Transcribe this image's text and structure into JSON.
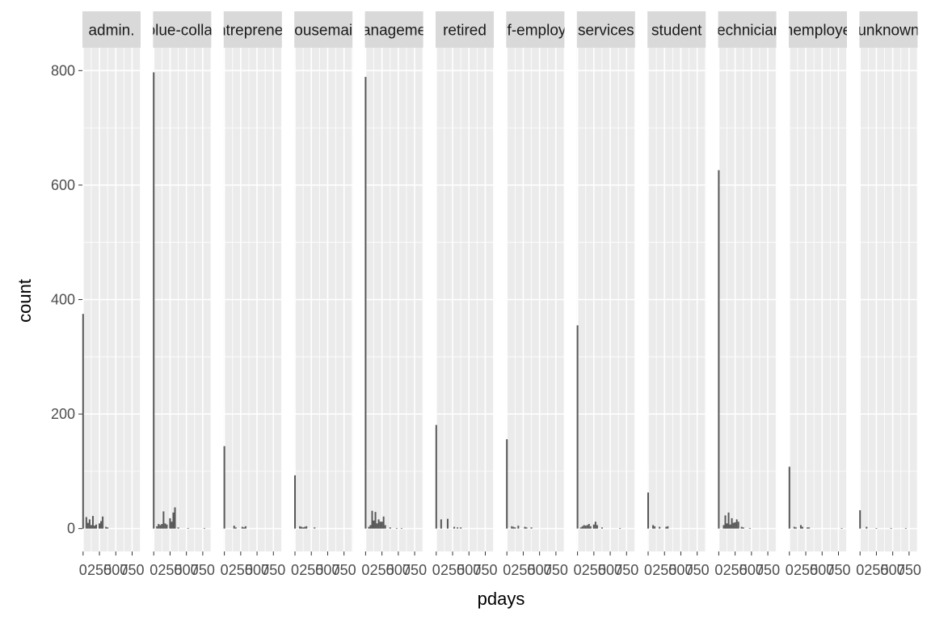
{
  "chart_data": {
    "type": "bar",
    "subtype": "faceted histogram",
    "xlabel": "pdays",
    "ylabel": "count",
    "xlim": [
      -10,
      880
    ],
    "ylim": [
      -40,
      840
    ],
    "x_ticks": [
      0,
      250,
      500,
      750
    ],
    "x_tick_labels": [
      "0",
      "250",
      "500",
      "750"
    ],
    "y_ticks": [
      0,
      200,
      400,
      600,
      800
    ],
    "y_tick_labels": [
      "0",
      "200",
      "400",
      "600",
      "800"
    ],
    "grid": true,
    "legend": "none",
    "bin_width": 25,
    "facets": [
      {
        "label": "admin.",
        "bins": [
          {
            "x": 0,
            "y": 375
          },
          {
            "x": 50,
            "y": 20
          },
          {
            "x": 75,
            "y": 10
          },
          {
            "x": 100,
            "y": 16
          },
          {
            "x": 125,
            "y": 6
          },
          {
            "x": 150,
            "y": 22
          },
          {
            "x": 175,
            "y": 5
          },
          {
            "x": 200,
            "y": 7
          },
          {
            "x": 250,
            "y": 9
          },
          {
            "x": 275,
            "y": 13
          },
          {
            "x": 300,
            "y": 21
          },
          {
            "x": 350,
            "y": 3
          },
          {
            "x": 375,
            "y": 2
          }
        ]
      },
      {
        "label": "blue-collar",
        "bins": [
          {
            "x": 0,
            "y": 797
          },
          {
            "x": 50,
            "y": 4
          },
          {
            "x": 75,
            "y": 8
          },
          {
            "x": 100,
            "y": 6
          },
          {
            "x": 125,
            "y": 8
          },
          {
            "x": 150,
            "y": 30
          },
          {
            "x": 175,
            "y": 9
          },
          {
            "x": 200,
            "y": 7
          },
          {
            "x": 250,
            "y": 18
          },
          {
            "x": 275,
            "y": 12
          },
          {
            "x": 300,
            "y": 28
          },
          {
            "x": 325,
            "y": 37
          },
          {
            "x": 375,
            "y": 2
          },
          {
            "x": 525,
            "y": 1
          },
          {
            "x": 775,
            "y": 1
          }
        ]
      },
      {
        "label": "entrepreneur",
        "bins": [
          {
            "x": 0,
            "y": 144
          },
          {
            "x": 150,
            "y": 5
          },
          {
            "x": 175,
            "y": 2
          },
          {
            "x": 275,
            "y": 3
          },
          {
            "x": 300,
            "y": 2
          },
          {
            "x": 325,
            "y": 4
          }
        ]
      },
      {
        "label": "housemaid",
        "bins": [
          {
            "x": 0,
            "y": 93
          },
          {
            "x": 75,
            "y": 4
          },
          {
            "x": 100,
            "y": 3
          },
          {
            "x": 125,
            "y": 2
          },
          {
            "x": 150,
            "y": 3
          },
          {
            "x": 175,
            "y": 4
          },
          {
            "x": 300,
            "y": 2
          }
        ]
      },
      {
        "label": "management",
        "bins": [
          {
            "x": 0,
            "y": 789
          },
          {
            "x": 50,
            "y": 3
          },
          {
            "x": 75,
            "y": 6
          },
          {
            "x": 100,
            "y": 31
          },
          {
            "x": 125,
            "y": 14
          },
          {
            "x": 150,
            "y": 29
          },
          {
            "x": 175,
            "y": 9
          },
          {
            "x": 200,
            "y": 16
          },
          {
            "x": 225,
            "y": 12
          },
          {
            "x": 250,
            "y": 12
          },
          {
            "x": 275,
            "y": 21
          },
          {
            "x": 300,
            "y": 6
          },
          {
            "x": 375,
            "y": 2
          },
          {
            "x": 475,
            "y": 1
          },
          {
            "x": 550,
            "y": 1
          }
        ]
      },
      {
        "label": "retired",
        "bins": [
          {
            "x": 0,
            "y": 181
          },
          {
            "x": 75,
            "y": 16
          },
          {
            "x": 175,
            "y": 17
          },
          {
            "x": 275,
            "y": 3
          },
          {
            "x": 325,
            "y": 2
          },
          {
            "x": 375,
            "y": 2
          }
        ]
      },
      {
        "label": "self-employed",
        "bins": [
          {
            "x": 0,
            "y": 156
          },
          {
            "x": 75,
            "y": 4
          },
          {
            "x": 100,
            "y": 3
          },
          {
            "x": 125,
            "y": 2
          },
          {
            "x": 175,
            "y": 5
          },
          {
            "x": 275,
            "y": 3
          },
          {
            "x": 300,
            "y": 2
          },
          {
            "x": 375,
            "y": 2
          }
        ]
      },
      {
        "label": "services",
        "bins": [
          {
            "x": 0,
            "y": 355
          },
          {
            "x": 50,
            "y": 2
          },
          {
            "x": 75,
            "y": 4
          },
          {
            "x": 100,
            "y": 6
          },
          {
            "x": 125,
            "y": 5
          },
          {
            "x": 150,
            "y": 6
          },
          {
            "x": 175,
            "y": 8
          },
          {
            "x": 200,
            "y": 4
          },
          {
            "x": 250,
            "y": 7
          },
          {
            "x": 275,
            "y": 12
          },
          {
            "x": 300,
            "y": 6
          },
          {
            "x": 375,
            "y": 2
          },
          {
            "x": 650,
            "y": 1
          }
        ]
      },
      {
        "label": "student",
        "bins": [
          {
            "x": 0,
            "y": 63
          },
          {
            "x": 75,
            "y": 6
          },
          {
            "x": 100,
            "y": 4
          },
          {
            "x": 175,
            "y": 3
          },
          {
            "x": 275,
            "y": 3
          },
          {
            "x": 300,
            "y": 4
          }
        ]
      },
      {
        "label": "technician",
        "bins": [
          {
            "x": 0,
            "y": 626
          },
          {
            "x": 75,
            "y": 6
          },
          {
            "x": 100,
            "y": 23
          },
          {
            "x": 125,
            "y": 9
          },
          {
            "x": 150,
            "y": 28
          },
          {
            "x": 175,
            "y": 7
          },
          {
            "x": 200,
            "y": 18
          },
          {
            "x": 225,
            "y": 10
          },
          {
            "x": 250,
            "y": 11
          },
          {
            "x": 275,
            "y": 16
          },
          {
            "x": 300,
            "y": 12
          },
          {
            "x": 350,
            "y": 3
          },
          {
            "x": 375,
            "y": 2
          },
          {
            "x": 475,
            "y": 1
          }
        ]
      },
      {
        "label": "unemployed",
        "bins": [
          {
            "x": 0,
            "y": 108
          },
          {
            "x": 75,
            "y": 3
          },
          {
            "x": 100,
            "y": 2
          },
          {
            "x": 175,
            "y": 6
          },
          {
            "x": 200,
            "y": 3
          },
          {
            "x": 275,
            "y": 2
          },
          {
            "x": 300,
            "y": 2
          },
          {
            "x": 800,
            "y": 1
          }
        ]
      },
      {
        "label": "unknown",
        "bins": [
          {
            "x": 0,
            "y": 32
          },
          {
            "x": 100,
            "y": 3
          },
          {
            "x": 250,
            "y": 1
          },
          {
            "x": 475,
            "y": 1
          },
          {
            "x": 700,
            "y": 1
          }
        ]
      }
    ]
  },
  "colors": {
    "panel_background": "#ebebeb",
    "strip_background": "#d9d9d9",
    "grid": "#ffffff",
    "bar_fill": "#595959",
    "tick": "#333333",
    "tick_label": "#4d4d4d",
    "axis_title": "#000000"
  }
}
